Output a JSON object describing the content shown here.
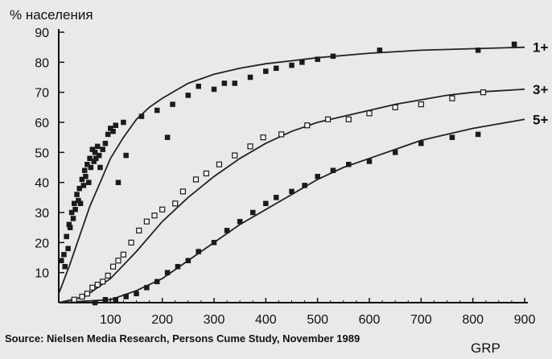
{
  "chart_data": {
    "type": "scatter",
    "ylabel": "% населения",
    "xlabel": "GRP",
    "xlim": [
      0,
      900
    ],
    "ylim": [
      0,
      90
    ],
    "x_ticks": [
      100,
      200,
      300,
      400,
      500,
      600,
      700,
      800,
      900
    ],
    "y_ticks": [
      10,
      20,
      30,
      40,
      50,
      60,
      70,
      80,
      90
    ],
    "grid": false,
    "source": "Source: Nielsen Media Research, Persons Cume Study, November 1989",
    "series": [
      {
        "name": "1+",
        "marker": "filled-square",
        "curve": [
          [
            0,
            3
          ],
          [
            20,
            12
          ],
          [
            40,
            22
          ],
          [
            60,
            32
          ],
          [
            80,
            40
          ],
          [
            100,
            48
          ],
          [
            125,
            55
          ],
          [
            150,
            61
          ],
          [
            175,
            65
          ],
          [
            200,
            68
          ],
          [
            250,
            73
          ],
          [
            300,
            76
          ],
          [
            350,
            78
          ],
          [
            400,
            79.5
          ],
          [
            450,
            80.5
          ],
          [
            500,
            81.5
          ],
          [
            600,
            83
          ],
          [
            700,
            84
          ],
          [
            800,
            84.5
          ],
          [
            900,
            85
          ]
        ],
        "points": [
          [
            5,
            14
          ],
          [
            10,
            16
          ],
          [
            12,
            12
          ],
          [
            15,
            22
          ],
          [
            18,
            18
          ],
          [
            20,
            26
          ],
          [
            22,
            25
          ],
          [
            25,
            30
          ],
          [
            28,
            28
          ],
          [
            30,
            33
          ],
          [
            32,
            31
          ],
          [
            35,
            36
          ],
          [
            38,
            34
          ],
          [
            40,
            38
          ],
          [
            42,
            33
          ],
          [
            45,
            41
          ],
          [
            48,
            39
          ],
          [
            50,
            44
          ],
          [
            52,
            42
          ],
          [
            55,
            46
          ],
          [
            58,
            40
          ],
          [
            60,
            48
          ],
          [
            62,
            45
          ],
          [
            65,
            51
          ],
          [
            68,
            47
          ],
          [
            70,
            50
          ],
          [
            72,
            48
          ],
          [
            75,
            52
          ],
          [
            78,
            49
          ],
          [
            80,
            45
          ],
          [
            85,
            51
          ],
          [
            90,
            53
          ],
          [
            95,
            56
          ],
          [
            100,
            58
          ],
          [
            105,
            57
          ],
          [
            110,
            59
          ],
          [
            115,
            40
          ],
          [
            125,
            60
          ],
          [
            130,
            49
          ],
          [
            160,
            62
          ],
          [
            190,
            64
          ],
          [
            210,
            55
          ],
          [
            220,
            66
          ],
          [
            250,
            69
          ],
          [
            270,
            72
          ],
          [
            300,
            71
          ],
          [
            320,
            73
          ],
          [
            340,
            73
          ],
          [
            370,
            75
          ],
          [
            400,
            77
          ],
          [
            420,
            78
          ],
          [
            450,
            79
          ],
          [
            470,
            80
          ],
          [
            500,
            81
          ],
          [
            530,
            82
          ],
          [
            620,
            84
          ],
          [
            810,
            84
          ],
          [
            880,
            86
          ]
        ]
      },
      {
        "name": "3+",
        "marker": "open-square",
        "curve": [
          [
            0,
            0
          ],
          [
            50,
            2
          ],
          [
            100,
            8
          ],
          [
            150,
            17
          ],
          [
            200,
            27
          ],
          [
            250,
            35
          ],
          [
            300,
            42
          ],
          [
            350,
            48
          ],
          [
            400,
            53
          ],
          [
            450,
            57
          ],
          [
            500,
            60
          ],
          [
            550,
            62
          ],
          [
            600,
            64
          ],
          [
            650,
            66
          ],
          [
            700,
            67.5
          ],
          [
            750,
            69
          ],
          [
            800,
            70
          ],
          [
            850,
            70.5
          ],
          [
            900,
            71
          ]
        ],
        "points": [
          [
            30,
            1
          ],
          [
            45,
            2
          ],
          [
            55,
            3
          ],
          [
            65,
            5
          ],
          [
            75,
            6
          ],
          [
            85,
            7
          ],
          [
            95,
            9
          ],
          [
            105,
            12
          ],
          [
            115,
            14
          ],
          [
            125,
            16
          ],
          [
            140,
            20
          ],
          [
            155,
            24
          ],
          [
            170,
            27
          ],
          [
            185,
            29
          ],
          [
            200,
            31
          ],
          [
            225,
            33
          ],
          [
            240,
            37
          ],
          [
            265,
            41
          ],
          [
            285,
            43
          ],
          [
            310,
            46
          ],
          [
            340,
            49
          ],
          [
            370,
            52
          ],
          [
            395,
            55
          ],
          [
            430,
            56
          ],
          [
            480,
            59
          ],
          [
            520,
            61
          ],
          [
            560,
            61
          ],
          [
            600,
            63
          ],
          [
            650,
            65
          ],
          [
            700,
            66
          ],
          [
            760,
            68
          ],
          [
            820,
            70
          ]
        ]
      },
      {
        "name": "5+",
        "marker": "filled-square",
        "curve": [
          [
            0,
            0
          ],
          [
            100,
            1
          ],
          [
            150,
            4
          ],
          [
            200,
            8
          ],
          [
            250,
            14
          ],
          [
            300,
            20
          ],
          [
            350,
            26
          ],
          [
            400,
            31
          ],
          [
            450,
            36
          ],
          [
            500,
            41
          ],
          [
            550,
            45
          ],
          [
            600,
            48
          ],
          [
            650,
            51
          ],
          [
            700,
            54
          ],
          [
            750,
            56
          ],
          [
            800,
            58
          ],
          [
            850,
            59.5
          ],
          [
            900,
            61
          ]
        ],
        "points": [
          [
            70,
            0
          ],
          [
            90,
            1
          ],
          [
            110,
            1
          ],
          [
            130,
            2
          ],
          [
            150,
            3
          ],
          [
            170,
            5
          ],
          [
            190,
            7
          ],
          [
            210,
            10
          ],
          [
            230,
            12
          ],
          [
            250,
            14
          ],
          [
            270,
            17
          ],
          [
            300,
            20
          ],
          [
            325,
            24
          ],
          [
            350,
            27
          ],
          [
            375,
            30
          ],
          [
            400,
            33
          ],
          [
            420,
            35
          ],
          [
            450,
            37
          ],
          [
            475,
            39
          ],
          [
            500,
            42
          ],
          [
            530,
            44
          ],
          [
            560,
            46
          ],
          [
            600,
            47
          ],
          [
            650,
            50
          ],
          [
            700,
            53
          ],
          [
            760,
            55
          ],
          [
            810,
            56
          ]
        ]
      }
    ]
  }
}
